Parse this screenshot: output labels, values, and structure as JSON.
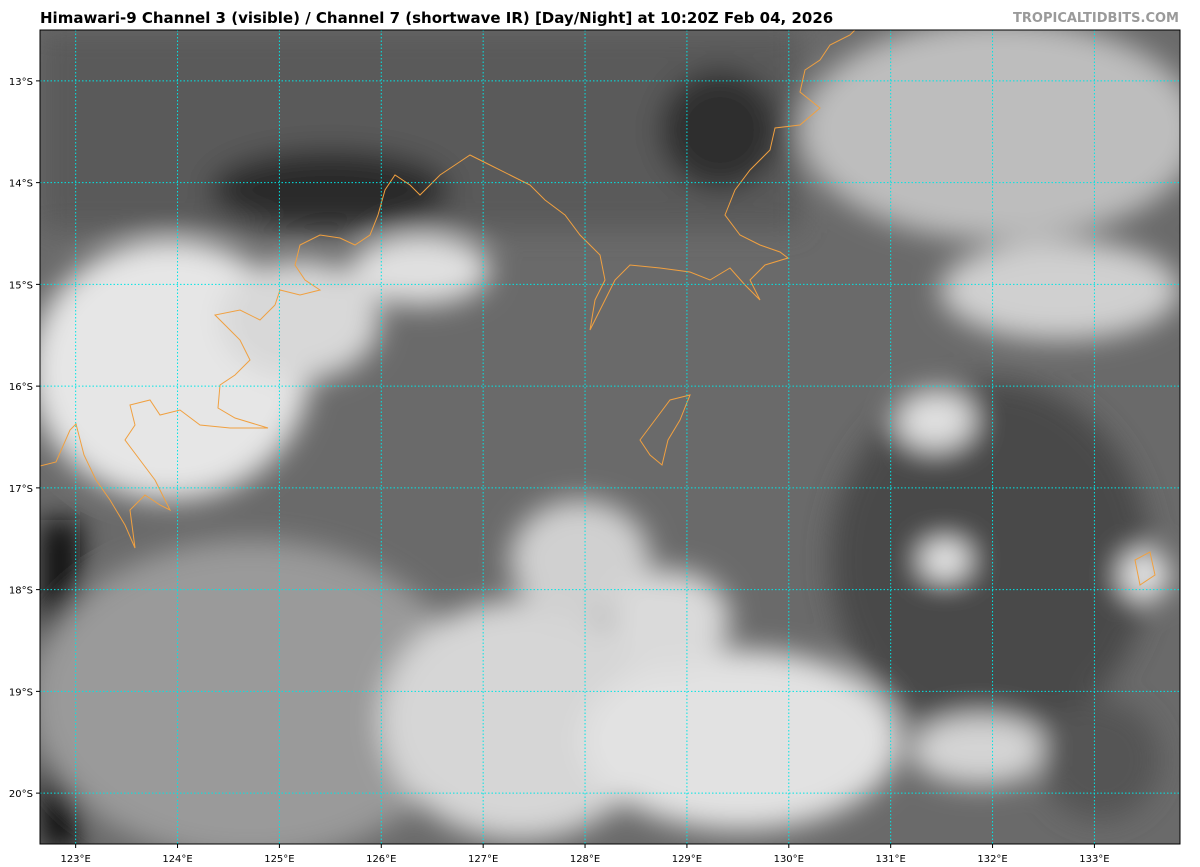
{
  "title": "Himawari-9 Channel 3 (visible) / Channel 7 (shortwave IR) [Day/Night] at 10:20Z Feb 04, 2026",
  "brand": "TROPICALTIDBITS.COM",
  "map": {
    "lon_range": [
      122.65,
      133.84
    ],
    "lat_range": [
      -12.5,
      -20.5
    ],
    "grid_color": "#00e5e5",
    "coastline_color": "#f0a040",
    "lat_ticks": [
      {
        "value": -13,
        "label": "13°S"
      },
      {
        "value": -14,
        "label": "14°S"
      },
      {
        "value": -15,
        "label": "15°S"
      },
      {
        "value": -16,
        "label": "16°S"
      },
      {
        "value": -17,
        "label": "17°S"
      },
      {
        "value": -18,
        "label": "18°S"
      },
      {
        "value": -19,
        "label": "19°S"
      },
      {
        "value": -20,
        "label": "20°S"
      }
    ],
    "lon_ticks": [
      {
        "value": 123,
        "label": "123°E"
      },
      {
        "value": 124,
        "label": "124°E"
      },
      {
        "value": 125,
        "label": "125°E"
      },
      {
        "value": 126,
        "label": "126°E"
      },
      {
        "value": 127,
        "label": "127°E"
      },
      {
        "value": 128,
        "label": "128°E"
      },
      {
        "value": 129,
        "label": "129°E"
      },
      {
        "value": 130,
        "label": "130°E"
      },
      {
        "value": 131,
        "label": "131°E"
      },
      {
        "value": 132,
        "label": "132°E"
      },
      {
        "value": 133,
        "label": "133°E"
      }
    ]
  }
}
